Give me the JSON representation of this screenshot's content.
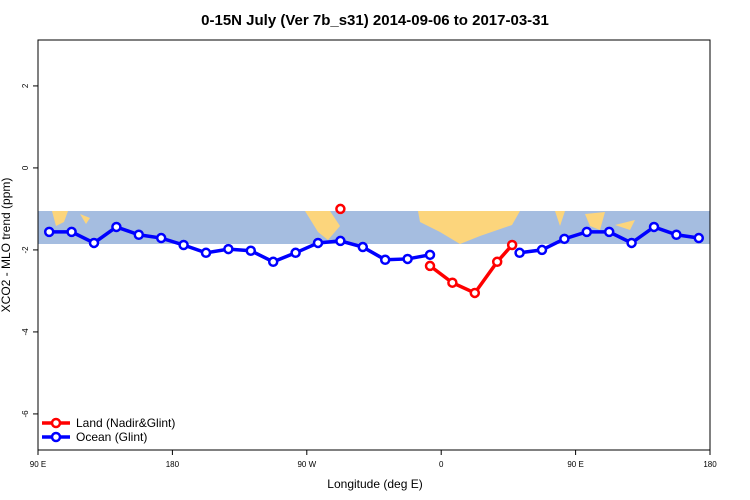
{
  "chart_data": {
    "type": "line",
    "title": "0-15N July (Ver 7b_s31)   2014-09-06 to 2017-03-31",
    "x_label": "Longitude (deg E)",
    "y_label": "XCO2 - MLO trend (ppm)",
    "xlim": [
      90,
      540
    ],
    "xticks": [
      {
        "value": 90,
        "label": "90 E"
      },
      {
        "value": 180,
        "label": "180"
      },
      {
        "value": 270,
        "label": "90 W"
      },
      {
        "value": 360,
        "label": "0"
      },
      {
        "value": 450,
        "label": "90 E"
      },
      {
        "value": 540,
        "label": "180"
      }
    ],
    "ylim": [
      -6.88,
      3.12
    ],
    "yticks": [
      2,
      0,
      -2,
      -4,
      -6
    ],
    "legend": "bottom-left",
    "series": [
      {
        "name": "Land (Nadir&Glint)",
        "color": "#ff0000",
        "x": [
          292.5,
          322.5,
          352.5,
          367.5,
          382.5,
          397.5,
          407.5
        ],
        "values": [
          -1.0,
          null,
          -2.39,
          -2.8,
          -3.05,
          -2.29,
          -1.88
        ]
      },
      {
        "name": "Ocean (Glint)",
        "color": "#0000ff",
        "x": [
          97.5,
          112.5,
          127.5,
          142.5,
          157.5,
          172.5,
          187.5,
          202.5,
          217.5,
          232.5,
          247.5,
          262.5,
          277.5,
          292.5,
          307.5,
          322.5,
          337.5,
          352.5,
          367.5,
          382.5,
          397.5,
          412.5,
          427.5,
          442.5,
          457.5,
          472.5,
          487.5,
          502.5,
          517.5,
          532.5
        ],
        "values": [
          -1.56,
          -1.56,
          -1.83,
          -1.44,
          -1.63,
          -1.71,
          -1.88,
          -2.07,
          -1.98,
          -2.02,
          -2.29,
          -2.07,
          -1.83,
          -1.78,
          -1.93,
          -2.24,
          -2.22,
          -2.12,
          null,
          null,
          null,
          -2.07,
          -2.0,
          -1.73,
          -1.56,
          -1.56,
          -1.83,
          -1.44,
          -1.63,
          -1.71
        ]
      }
    ]
  }
}
